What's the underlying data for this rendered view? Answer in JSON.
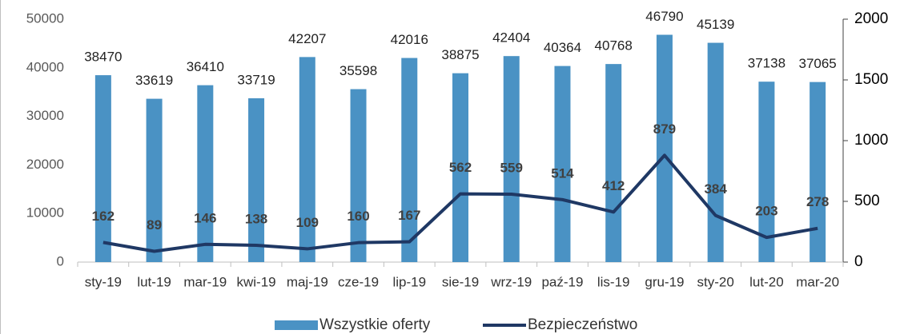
{
  "chart_data": {
    "type": "bar",
    "categories": [
      "sty-19",
      "lut-19",
      "mar-19",
      "kwi-19",
      "maj-19",
      "cze-19",
      "lip-19",
      "sie-19",
      "wrz-19",
      "paź-19",
      "lis-19",
      "gru-19",
      "sty-20",
      "lut-20",
      "mar-20"
    ],
    "series": [
      {
        "name": "Wszystkie oferty",
        "type": "bar",
        "color": "#4a92c4",
        "values": [
          38470,
          33619,
          36410,
          33719,
          42207,
          35598,
          42016,
          38875,
          42404,
          40364,
          40768,
          46790,
          45139,
          37138,
          37065
        ]
      },
      {
        "name": "Bezpieczeństwo",
        "type": "line",
        "axis": "y2",
        "color": "#1f3864",
        "values": [
          162,
          89,
          146,
          138,
          109,
          160,
          167,
          562,
          559,
          514,
          412,
          879,
          384,
          203,
          278
        ]
      }
    ],
    "ylim": [
      0,
      50000
    ],
    "yticks": [
      0,
      10000,
      20000,
      30000,
      40000,
      50000
    ],
    "y2lim": [
      0,
      2000
    ],
    "y2ticks": [
      0,
      500,
      1000,
      1500,
      2000
    ],
    "legend": "bottom"
  }
}
